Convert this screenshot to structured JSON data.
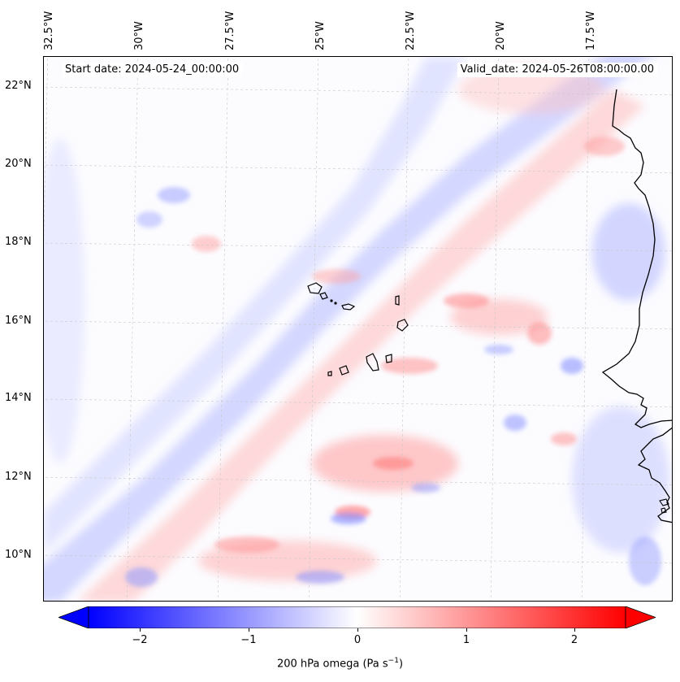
{
  "map": {
    "lon_labels": [
      "32.5°W",
      "30°W",
      "27.5°W",
      "25°W",
      "22.5°W",
      "20°W",
      "17.5°W"
    ],
    "lat_labels": [
      "22°N",
      "20°N",
      "18°N",
      "16°N",
      "14°N",
      "12°N",
      "10°N"
    ],
    "start_date": "Start date: 2024-05-24_00:00:00",
    "valid_date": "Valid_date: 2024-05-26T08:00:00.00",
    "field_colors": {
      "negative": "#6f7cff",
      "positive": "#ff7a7a",
      "neutral": "#ffffff",
      "coast": "#000000"
    }
  },
  "colorbar": {
    "ticks": [
      "−2",
      "−1",
      "0",
      "1",
      "2"
    ],
    "tick_values": [
      -2,
      -1,
      0,
      1,
      2
    ],
    "vmin": -2.6,
    "vmax": 2.6,
    "label_main": "200 hPa omega (Pa s",
    "label_sup": "−1",
    "label_end": ")",
    "cmap": "bwr"
  }
}
